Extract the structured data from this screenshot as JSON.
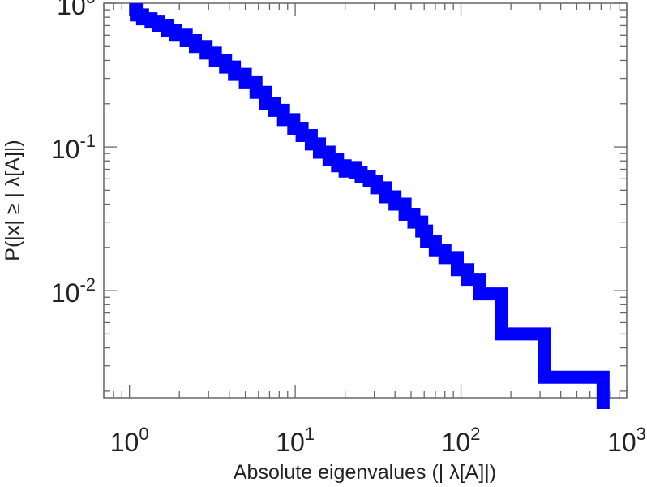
{
  "chart_data": {
    "type": "line",
    "xscale": "log",
    "yscale": "log",
    "xlim": [
      0.7,
      1000
    ],
    "ylim": [
      0.0018,
      1.0
    ],
    "xlabel": "Absolute eigenvalues (|      λ[A]|)",
    "ylabel": "P(|x|  ≥ | λ[A]|)",
    "grid": false,
    "legend": "none",
    "x_ticks": [
      {
        "base": "10",
        "exp": "0",
        "value": 1
      },
      {
        "base": "10",
        "exp": "1",
        "value": 10
      },
      {
        "base": "10",
        "exp": "2",
        "value": 100
      },
      {
        "base": "10",
        "exp": "3",
        "value": 1000
      }
    ],
    "y_ticks": [
      {
        "base": "10",
        "exp": "0",
        "value": 1
      },
      {
        "base": "10",
        "exp": "-1",
        "value": 0.1
      },
      {
        "base": "10",
        "exp": "-2",
        "value": 0.01
      }
    ],
    "series": [
      {
        "color": "#0000ff",
        "style": "step",
        "x": [
          1.0,
          1.1,
          1.2,
          1.35,
          1.5,
          1.7,
          1.9,
          2.2,
          2.5,
          2.9,
          3.3,
          3.8,
          4.3,
          5.0,
          5.8,
          6.6,
          7.5,
          8.5,
          9.8,
          11,
          12.5,
          14,
          16,
          18,
          20,
          21,
          23,
          25,
          28,
          31,
          35,
          40,
          46,
          52,
          58,
          62,
          70,
          80,
          95,
          110,
          130,
          175,
          320,
          720
        ],
        "y": [
          0.9,
          0.83,
          0.78,
          0.74,
          0.7,
          0.65,
          0.6,
          0.55,
          0.5,
          0.45,
          0.4,
          0.36,
          0.32,
          0.28,
          0.24,
          0.2,
          0.18,
          0.155,
          0.135,
          0.12,
          0.105,
          0.092,
          0.082,
          0.074,
          0.068,
          0.072,
          0.066,
          0.062,
          0.058,
          0.052,
          0.045,
          0.04,
          0.034,
          0.03,
          0.026,
          0.022,
          0.019,
          0.017,
          0.014,
          0.012,
          0.0095,
          0.005,
          0.0025,
          0.0015
        ]
      }
    ]
  }
}
